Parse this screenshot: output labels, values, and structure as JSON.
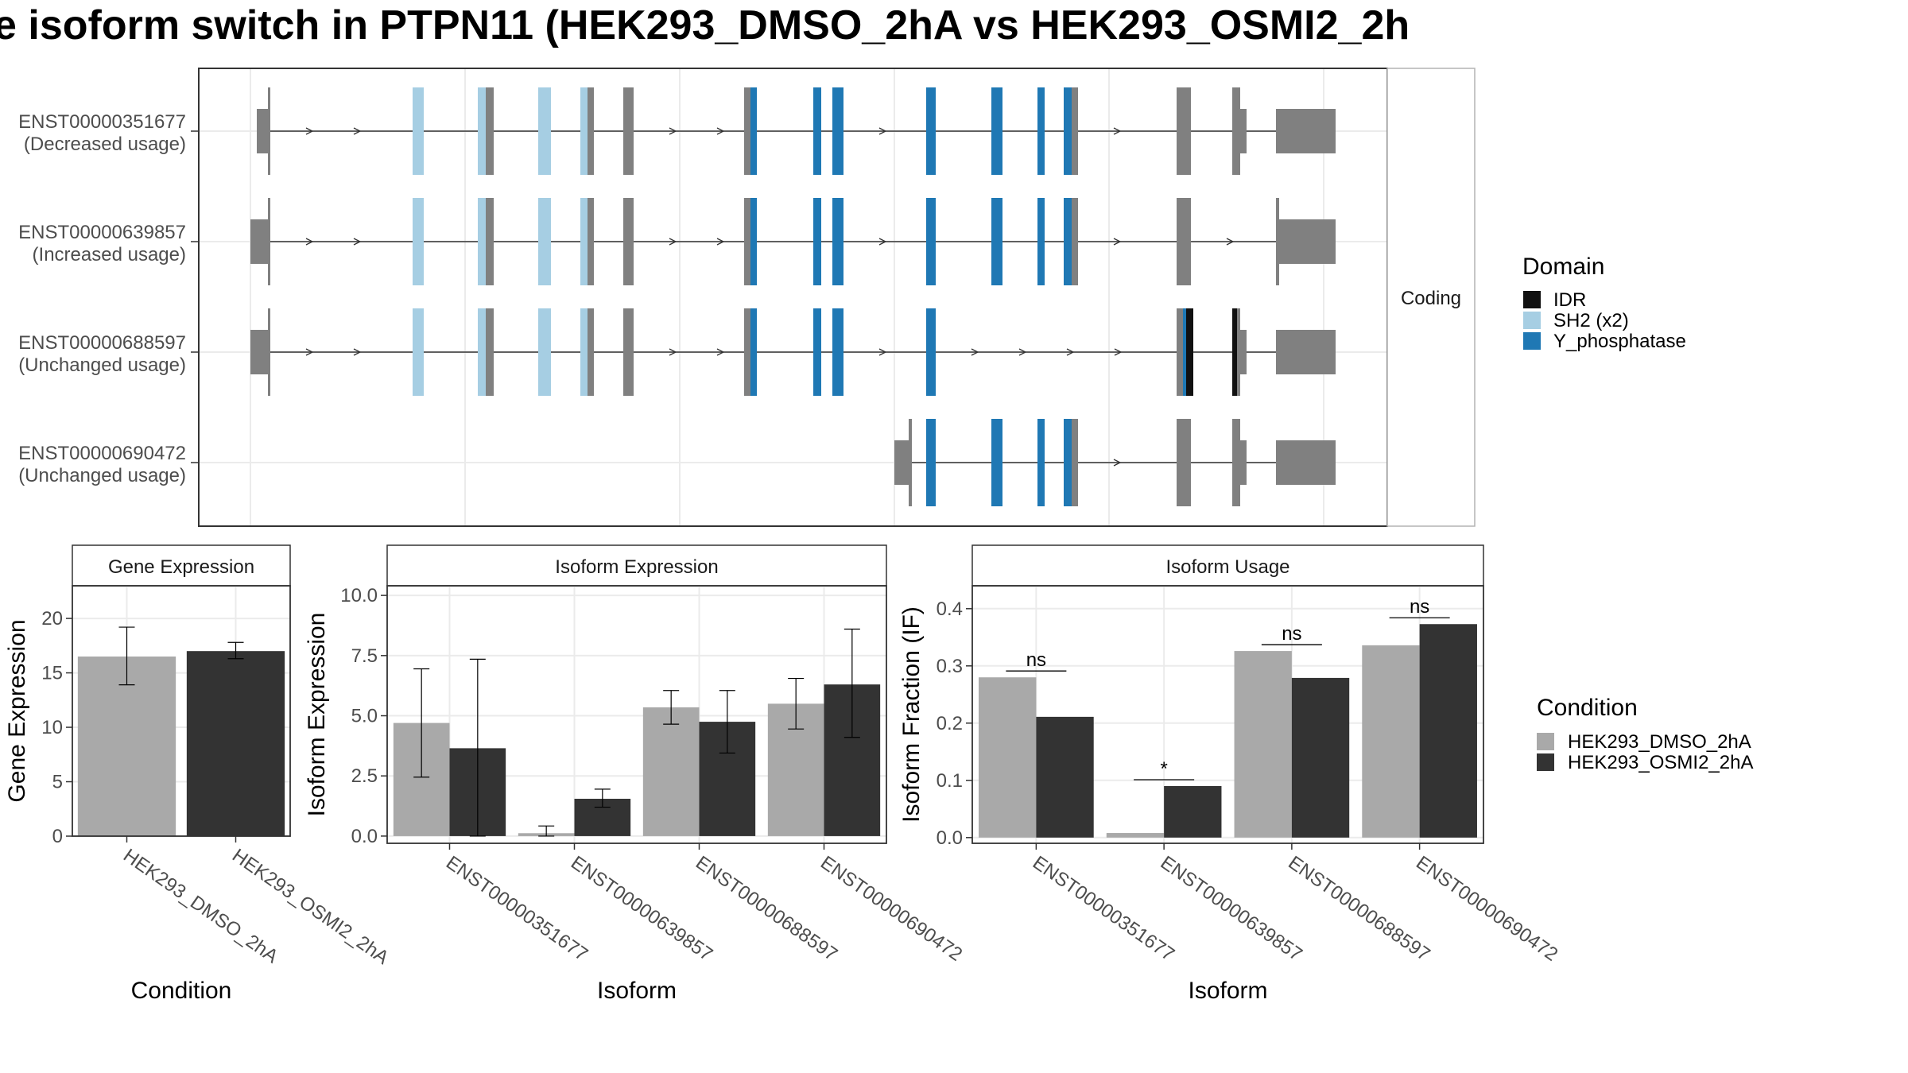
{
  "title": "e isoform switch in PTPN11 (HEK293_DMSO_2hA vs HEK293_OSMI2_2h",
  "colors": {
    "IDR": "#111111",
    "SH2 (x2)": "#a6cee3",
    "Y_phosphatase": "#1f78b4",
    "exon": "#808080",
    "condition1": "#a9a9a9",
    "condition2": "#333333"
  },
  "structure": {
    "strip_label": "Coding",
    "isoforms": [
      {
        "id": "ENST00000351677",
        "usage": "(Decreased usage)"
      },
      {
        "id": "ENST00000639857",
        "usage": "(Increased usage)"
      },
      {
        "id": "ENST00000688597",
        "usage": "(Unchanged usage)"
      },
      {
        "id": "ENST00000690472",
        "usage": "(Unchanged usage)"
      }
    ],
    "legend_title": "Domain",
    "legend_items": [
      "IDR",
      "SH2 (x2)",
      "Y_phosphatase"
    ]
  },
  "condition_legend": {
    "title": "Condition",
    "items": [
      "HEK293_DMSO_2hA",
      "HEK293_OSMI2_2hA"
    ]
  },
  "chart_data": [
    {
      "type": "bar",
      "title": "Gene Expression",
      "xlabel": "Condition",
      "ylabel": "Gene Expression",
      "ylim": [
        0,
        23
      ],
      "yticks": [
        "0",
        "5",
        "10",
        "15",
        "20"
      ],
      "categories": [
        "HEK293_DMSO_2hA",
        "HEK293_OSMI2_2hA"
      ],
      "values": [
        16.5,
        17.0
      ],
      "errors": [
        [
          13.9,
          19.2
        ],
        [
          16.3,
          17.8
        ]
      ]
    },
    {
      "type": "bar",
      "title": "Isoform Expression",
      "xlabel": "Isoform",
      "ylabel": "Isoform Expression",
      "ylim": [
        -0.3,
        10.4
      ],
      "yticks": [
        "0.0",
        "2.5",
        "5.0",
        "7.5",
        "10.0"
      ],
      "categories": [
        "ENST00000351677",
        "ENST00000639857",
        "ENST00000688597",
        "ENST00000690472"
      ],
      "series": [
        {
          "name": "HEK293_DMSO_2hA",
          "values": [
            4.7,
            0.12,
            5.35,
            5.5
          ],
          "errors": [
            [
              2.45,
              6.95
            ],
            [
              0.0,
              0.42
            ],
            [
              4.65,
              6.05
            ],
            [
              4.45,
              6.55
            ]
          ]
        },
        {
          "name": "HEK293_OSMI2_2hA",
          "values": [
            3.65,
            1.55,
            4.75,
            6.3
          ],
          "errors": [
            [
              0.0,
              7.35
            ],
            [
              1.2,
              1.95
            ],
            [
              3.45,
              6.05
            ],
            [
              4.1,
              8.6
            ]
          ]
        }
      ]
    },
    {
      "type": "bar",
      "title": "Isoform Usage",
      "xlabel": "Isoform",
      "ylabel": "Isoform Fraction (IF)",
      "ylim": [
        -0.01,
        0.44
      ],
      "yticks": [
        "0.0",
        "0.1",
        "0.2",
        "0.3",
        "0.4"
      ],
      "categories": [
        "ENST00000351677",
        "ENST00000639857",
        "ENST00000688597",
        "ENST00000690472"
      ],
      "series": [
        {
          "name": "HEK293_DMSO_2hA",
          "values": [
            0.28,
            0.008,
            0.326,
            0.336
          ]
        },
        {
          "name": "HEK293_OSMI2_2hA",
          "values": [
            0.211,
            0.09,
            0.279,
            0.373
          ]
        }
      ],
      "annotations": [
        "ns",
        "*",
        "ns",
        "ns"
      ]
    }
  ]
}
